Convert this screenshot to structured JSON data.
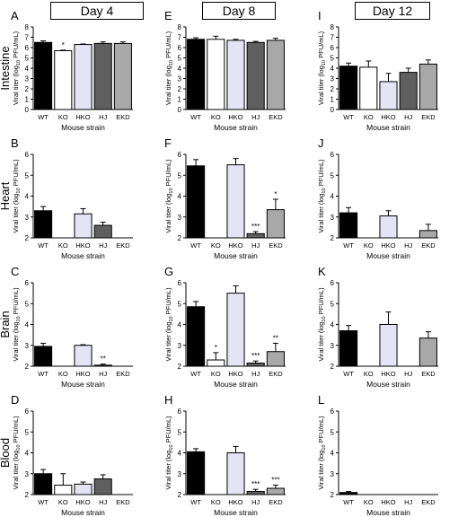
{
  "headers": [
    "Day 4",
    "Day 8",
    "Day 12"
  ],
  "row_labels": [
    "Intestine",
    "Heart",
    "Brain",
    "Blood"
  ],
  "y_axis_label": "Viral titer (log",
  "y_axis_label_sub": "10",
  "y_axis_label_tail": " PFU/mL)",
  "x_axis_label": "Mouse strain",
  "categories": [
    "WT",
    "KO",
    "HKO",
    "HJ",
    "EKD"
  ],
  "bar_colors": [
    "#000000",
    "#ffffff",
    "#e4e4f4",
    "#5f5f5f",
    "#a8a8a8"
  ],
  "chart_data": [
    {
      "panel": "A",
      "type": "bar",
      "ylim": [
        0,
        8
      ],
      "yticks": [
        0,
        1,
        2,
        3,
        4,
        5,
        6,
        7,
        8
      ],
      "values": [
        6.5,
        5.7,
        6.3,
        6.4,
        6.4
      ],
      "errors": [
        0.15,
        0.05,
        0.05,
        0.15,
        0.15
      ],
      "annotations": [
        "",
        "*",
        "",
        "",
        ""
      ]
    },
    {
      "panel": "E",
      "type": "bar",
      "ylim": [
        0,
        8
      ],
      "yticks": [
        0,
        1,
        2,
        3,
        4,
        5,
        6,
        7,
        8
      ],
      "values": [
        6.8,
        6.8,
        6.7,
        6.5,
        6.7
      ],
      "errors": [
        0.15,
        0.3,
        0.1,
        0.1,
        0.2
      ],
      "annotations": [
        "",
        "",
        "",
        "",
        ""
      ]
    },
    {
      "panel": "I",
      "type": "bar",
      "ylim": [
        0,
        8
      ],
      "yticks": [
        0,
        1,
        2,
        3,
        4,
        5,
        6,
        7,
        8
      ],
      "values": [
        4.2,
        4.1,
        2.7,
        3.6,
        4.4
      ],
      "errors": [
        0.3,
        0.6,
        0.8,
        0.4,
        0.4
      ],
      "annotations": [
        "",
        "",
        "",
        "",
        ""
      ]
    },
    {
      "panel": "B",
      "type": "bar",
      "ylim": [
        2,
        6
      ],
      "yticks": [
        2,
        3,
        4,
        5,
        6
      ],
      "values": [
        3.3,
        null,
        3.15,
        2.6,
        null
      ],
      "errors": [
        0.2,
        0,
        0.25,
        0.15,
        0
      ],
      "annotations": [
        "",
        "",
        "",
        "",
        ""
      ]
    },
    {
      "panel": "F",
      "type": "bar",
      "ylim": [
        2,
        6
      ],
      "yticks": [
        2,
        3,
        4,
        5,
        6
      ],
      "values": [
        5.45,
        null,
        5.5,
        2.2,
        3.35
      ],
      "errors": [
        0.3,
        0,
        0.3,
        0.1,
        0.5
      ],
      "annotations": [
        "",
        "",
        "",
        "***",
        "*"
      ]
    },
    {
      "panel": "J",
      "type": "bar",
      "ylim": [
        2,
        6
      ],
      "yticks": [
        2,
        3,
        4,
        5,
        6
      ],
      "values": [
        3.2,
        null,
        3.05,
        null,
        2.35
      ],
      "errors": [
        0.25,
        0,
        0.25,
        0,
        0.3
      ],
      "annotations": [
        "",
        "",
        "",
        "",
        ""
      ]
    },
    {
      "panel": "C",
      "type": "bar",
      "ylim": [
        2,
        6
      ],
      "yticks": [
        2,
        3,
        4,
        5,
        6
      ],
      "values": [
        2.95,
        null,
        3.0,
        2.05,
        null
      ],
      "errors": [
        0.15,
        0,
        0.03,
        0.05,
        0
      ],
      "annotations": [
        "",
        "",
        "",
        "**",
        ""
      ]
    },
    {
      "panel": "G",
      "type": "bar",
      "ylim": [
        2,
        6
      ],
      "yticks": [
        2,
        3,
        4,
        5,
        6
      ],
      "values": [
        4.85,
        2.3,
        5.5,
        2.15,
        2.7
      ],
      "errors": [
        0.25,
        0.35,
        0.35,
        0.1,
        0.4
      ],
      "annotations": [
        "",
        "*",
        "",
        "***",
        "**"
      ]
    },
    {
      "panel": "K",
      "type": "bar",
      "ylim": [
        2,
        6
      ],
      "yticks": [
        2,
        3,
        4,
        5,
        6
      ],
      "values": [
        3.7,
        null,
        4.0,
        null,
        3.35
      ],
      "errors": [
        0.25,
        0,
        0.6,
        0,
        0.3
      ],
      "annotations": [
        "",
        "",
        "",
        "",
        ""
      ]
    },
    {
      "panel": "D",
      "type": "bar",
      "ylim": [
        2,
        6
      ],
      "yticks": [
        2,
        3,
        4,
        5,
        6
      ],
      "values": [
        3.0,
        2.45,
        2.5,
        2.75,
        null
      ],
      "errors": [
        0.2,
        0.55,
        0.1,
        0.2,
        0
      ],
      "annotations": [
        "",
        "",
        "",
        "",
        ""
      ]
    },
    {
      "panel": "H",
      "type": "bar",
      "ylim": [
        2,
        6
      ],
      "yticks": [
        2,
        3,
        4,
        5,
        6
      ],
      "values": [
        4.05,
        null,
        4.0,
        2.15,
        2.3
      ],
      "errors": [
        0.15,
        0,
        0.3,
        0.1,
        0.15
      ],
      "annotations": [
        "",
        "",
        "",
        "***",
        "***"
      ]
    },
    {
      "panel": "L",
      "type": "bar",
      "ylim": [
        2,
        6
      ],
      "yticks": [
        2,
        3,
        4,
        5,
        6
      ],
      "values": [
        2.1,
        null,
        null,
        null,
        null
      ],
      "errors": [
        0.05,
        0,
        0,
        0,
        0
      ],
      "annotations": [
        "",
        "",
        "",
        "",
        ""
      ]
    }
  ]
}
